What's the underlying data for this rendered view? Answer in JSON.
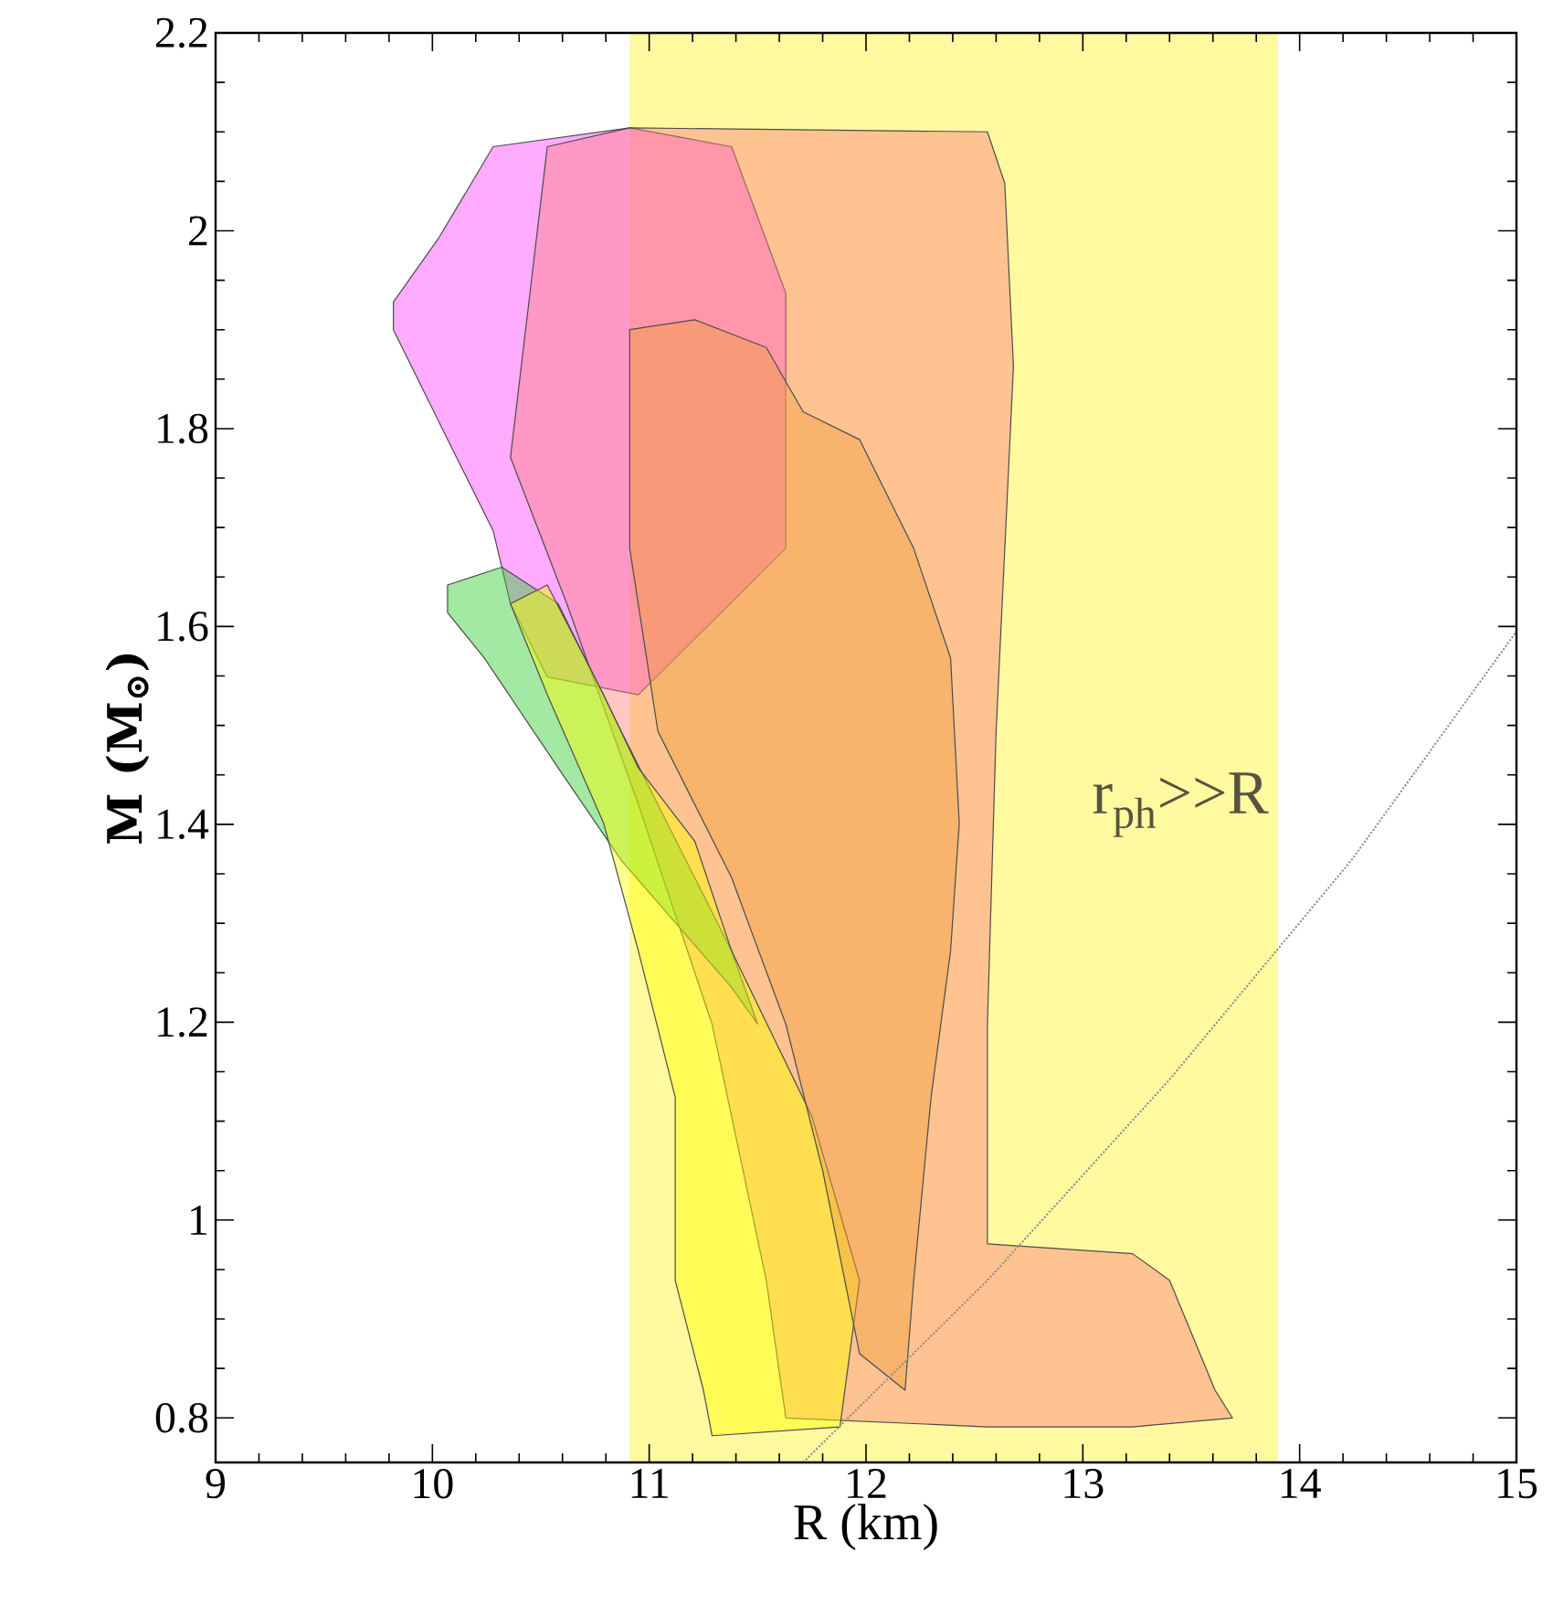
{
  "chart_data": {
    "type": "area",
    "xlabel": "R (km)",
    "ylabel": "M (M$_{⊙}$)",
    "xlim": [
      9,
      15
    ],
    "ylim": [
      0.755,
      2.2
    ],
    "xticks": [
      9,
      10,
      11,
      12,
      13,
      14,
      15
    ],
    "yticks": [
      0.8,
      1,
      1.2,
      1.4,
      1.6,
      1.8,
      2,
      2.2
    ],
    "grid": false,
    "bands": [
      {
        "axis": "x",
        "from": 10.91,
        "to": 13.9,
        "label": "r$_{ph}$>>R",
        "color": "#fff9a0"
      }
    ],
    "series": [
      {
        "color": "#ff44ff",
        "x": [
          9.82,
          10.03,
          10.28,
          10.91,
          11.38,
          11.63,
          11.63,
          10.95,
          10.53,
          10.36,
          10.28,
          10.07,
          9.82
        ],
        "values": [
          1.928,
          1.993,
          2.085,
          2.104,
          2.085,
          1.937,
          1.679,
          1.531,
          1.549,
          1.623,
          1.697,
          1.789,
          1.9
        ]
      },
      {
        "color": "#ff8080",
        "x": [
          10.53,
          10.91,
          12.56,
          12.64,
          12.68,
          12.6,
          12.56,
          12.56,
          13.23,
          13.4,
          13.61,
          13.69,
          13.23,
          12.56,
          11.63,
          11.54,
          11.29,
          10.95,
          10.62,
          10.36,
          10.45
        ],
        "values": [
          2.085,
          2.104,
          2.1,
          2.048,
          1.863,
          1.494,
          1.198,
          0.976,
          0.966,
          0.939,
          0.828,
          0.8,
          0.791,
          0.791,
          0.8,
          0.939,
          1.198,
          1.42,
          1.623,
          1.771,
          1.937
        ]
      },
      {
        "color": "#33cc33",
        "x": [
          10.07,
          10.32,
          10.58,
          10.83,
          11.04,
          11.38,
          11.5,
          11.38,
          10.87,
          10.58,
          10.24,
          10.07
        ],
        "values": [
          1.642,
          1.66,
          1.623,
          1.512,
          1.42,
          1.272,
          1.198,
          1.235,
          1.364,
          1.457,
          1.568,
          1.614
        ]
      },
      {
        "color": "#ffff00",
        "x": [
          10.36,
          10.53,
          10.79,
          10.95,
          11.21,
          11.38,
          11.75,
          11.97,
          11.88,
          11.29,
          11.25,
          11.12,
          11.12,
          10.95,
          10.79,
          10.53
        ],
        "values": [
          1.623,
          1.642,
          1.531,
          1.457,
          1.383,
          1.272,
          1.105,
          0.939,
          0.791,
          0.782,
          0.828,
          0.939,
          1.124,
          1.272,
          1.401,
          1.531
        ]
      },
      {
        "color": "#f0a040",
        "x": [
          10.91,
          11.21,
          11.54,
          11.71,
          11.97,
          12.22,
          12.39,
          12.43,
          12.39,
          12.3,
          12.22,
          12.18,
          11.97,
          11.8,
          11.63,
          11.38,
          11.04,
          10.91
        ],
        "values": [
          1.9,
          1.91,
          1.882,
          1.817,
          1.789,
          1.679,
          1.568,
          1.401,
          1.272,
          1.124,
          0.939,
          0.828,
          0.865,
          1.05,
          1.198,
          1.346,
          1.494,
          1.679
        ]
      },
      {
        "type": "line",
        "color": "#888888",
        "line_style": "dotted",
        "x": [
          11.71,
          12.56,
          13.4,
          14.24,
          15.0
        ],
        "values": [
          0.755,
          0.939,
          1.142,
          1.364,
          1.595
        ]
      }
    ]
  }
}
